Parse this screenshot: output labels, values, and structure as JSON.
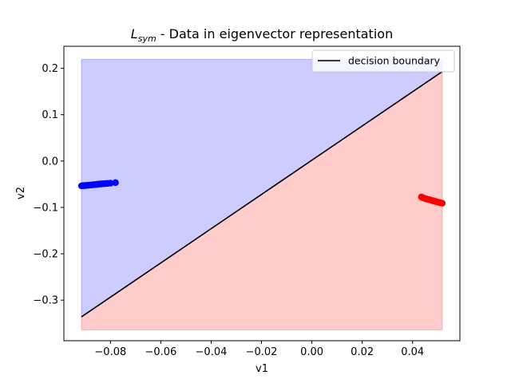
{
  "chart_data": {
    "type": "scatter",
    "title_symbol": "L",
    "title_subscript": "sym",
    "title_rest": " - Data in eigenvector representation",
    "xlabel": "v1",
    "ylabel": "v2",
    "xlim": [
      -0.0985,
      0.0588
    ],
    "ylim": [
      -0.3875,
      0.2475
    ],
    "xticks": [
      -0.08,
      -0.06,
      -0.04,
      -0.02,
      0.0,
      0.02,
      0.04
    ],
    "xtick_labels": [
      "−0.08",
      "−0.06",
      "−0.04",
      "−0.02",
      "0.00",
      "0.02",
      "0.04"
    ],
    "yticks": [
      0.2,
      0.1,
      0.0,
      -0.1,
      -0.2,
      -0.3
    ],
    "ytick_labels": [
      "0.2",
      "0.1",
      "0.0",
      "−0.1",
      "−0.2",
      "−0.3"
    ],
    "grid": false,
    "legend": {
      "position": "upper right",
      "entries": [
        "decision boundary"
      ]
    },
    "decision_boundary": {
      "x": [
        -0.0915,
        0.0518
      ],
      "y": [
        -0.336,
        0.193
      ],
      "color": "#000000"
    },
    "regions": [
      {
        "name": "above",
        "color": "#0000ff",
        "alpha": 0.2,
        "x_range": [
          -0.0915,
          0.0518
        ],
        "y_range": [
          -0.364,
          0.219
        ]
      },
      {
        "name": "below",
        "color": "#ff0000",
        "alpha": 0.2,
        "x_range": [
          -0.0915,
          0.0518
        ],
        "y_range": [
          -0.364,
          0.219
        ]
      }
    ],
    "series": [
      {
        "color": "#0000ff",
        "points": [
          [
            -0.0915,
            -0.0535
          ],
          [
            -0.091,
            -0.0532
          ],
          [
            -0.0905,
            -0.053
          ],
          [
            -0.09,
            -0.0528
          ],
          [
            -0.0895,
            -0.0525
          ],
          [
            -0.089,
            -0.0523
          ],
          [
            -0.0885,
            -0.052
          ],
          [
            -0.088,
            -0.0518
          ],
          [
            -0.0875,
            -0.0515
          ],
          [
            -0.087,
            -0.0512
          ],
          [
            -0.0865,
            -0.051
          ],
          [
            -0.086,
            -0.0507
          ],
          [
            -0.0855,
            -0.0504
          ],
          [
            -0.085,
            -0.05
          ],
          [
            -0.0845,
            -0.0497
          ],
          [
            -0.084,
            -0.0494
          ],
          [
            -0.0835,
            -0.0492
          ],
          [
            -0.083,
            -0.049
          ],
          [
            -0.0825,
            -0.0488
          ],
          [
            -0.082,
            -0.0486
          ],
          [
            -0.0815,
            -0.0484
          ],
          [
            -0.081,
            -0.0482
          ],
          [
            -0.08,
            -0.0478
          ],
          [
            -0.078,
            -0.0465
          ]
        ]
      },
      {
        "color": "#ff0000",
        "points": [
          [
            0.0435,
            -0.0775
          ],
          [
            0.044,
            -0.079
          ],
          [
            0.0445,
            -0.08
          ],
          [
            0.045,
            -0.081
          ],
          [
            0.0455,
            -0.0818
          ],
          [
            0.046,
            -0.0825
          ],
          [
            0.0465,
            -0.0832
          ],
          [
            0.047,
            -0.084
          ],
          [
            0.0475,
            -0.0847
          ],
          [
            0.048,
            -0.0855
          ],
          [
            0.0485,
            -0.0862
          ],
          [
            0.049,
            -0.087
          ],
          [
            0.0495,
            -0.0878
          ],
          [
            0.05,
            -0.0885
          ],
          [
            0.0505,
            -0.0892
          ],
          [
            0.051,
            -0.09
          ],
          [
            0.0515,
            -0.0905
          ],
          [
            0.0518,
            -0.091
          ]
        ]
      }
    ]
  }
}
